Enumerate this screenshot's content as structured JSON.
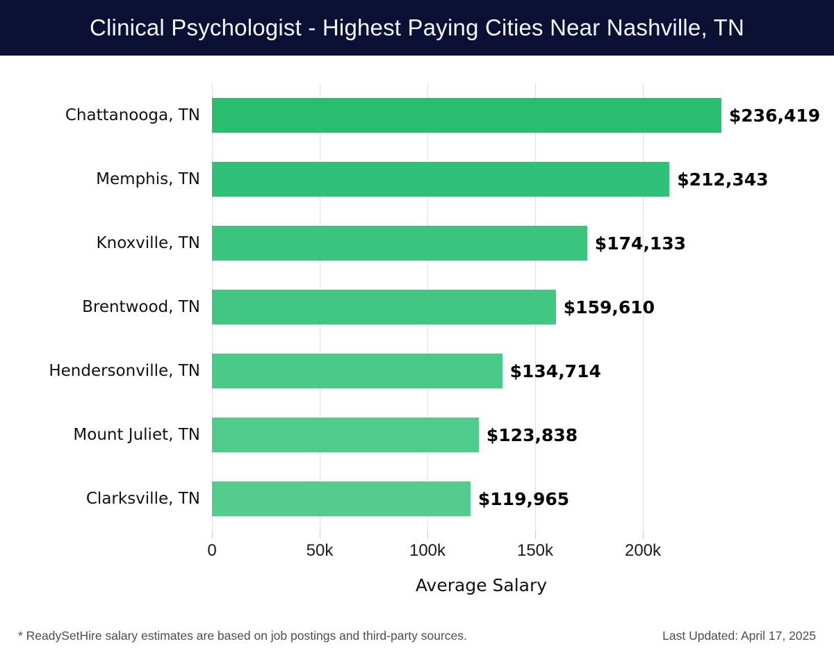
{
  "header": {
    "title": "Clinical Psychologist - Highest Paying Cities Near Nashville, TN"
  },
  "chart_data": {
    "type": "bar",
    "orientation": "horizontal",
    "title": "Clinical Psychologist - Highest Paying Cities Near Nashville, TN",
    "categories": [
      "Chattanooga, TN",
      "Memphis, TN",
      "Knoxville, TN",
      "Brentwood, TN",
      "Hendersonville, TN",
      "Mount Juliet, TN",
      "Clarksville, TN"
    ],
    "values": [
      236419,
      212343,
      174133,
      159610,
      134714,
      123838,
      119965
    ],
    "value_labels": [
      "$236,419",
      "$212,343",
      "$174,133",
      "$159,610",
      "$134,714",
      "$123,838",
      "$119,965"
    ],
    "bar_colors": [
      "#29bd70",
      "#30c077",
      "#3ac47e",
      "#42c783",
      "#4aca88",
      "#4fcb8b",
      "#53cc8d"
    ],
    "xlabel": "Average Salary",
    "ylabel": "",
    "xlim": [
      0,
      250000
    ],
    "x_ticks": [
      {
        "value": 0,
        "label": "0"
      },
      {
        "value": 50000,
        "label": "50k"
      },
      {
        "value": 100000,
        "label": "100k"
      },
      {
        "value": 150000,
        "label": "150k"
      },
      {
        "value": 200000,
        "label": "200k"
      }
    ],
    "grid": true,
    "legend": false
  },
  "footer": {
    "note": "* ReadySetHire salary estimates are based on job postings and third-party sources.",
    "last_updated": "Last Updated: April 17, 2025"
  },
  "colors": {
    "header_bg": "#0d1035",
    "header_text": "#f5f6fa",
    "grid": "#e2e2e2",
    "tick": "#c9c9c9"
  }
}
